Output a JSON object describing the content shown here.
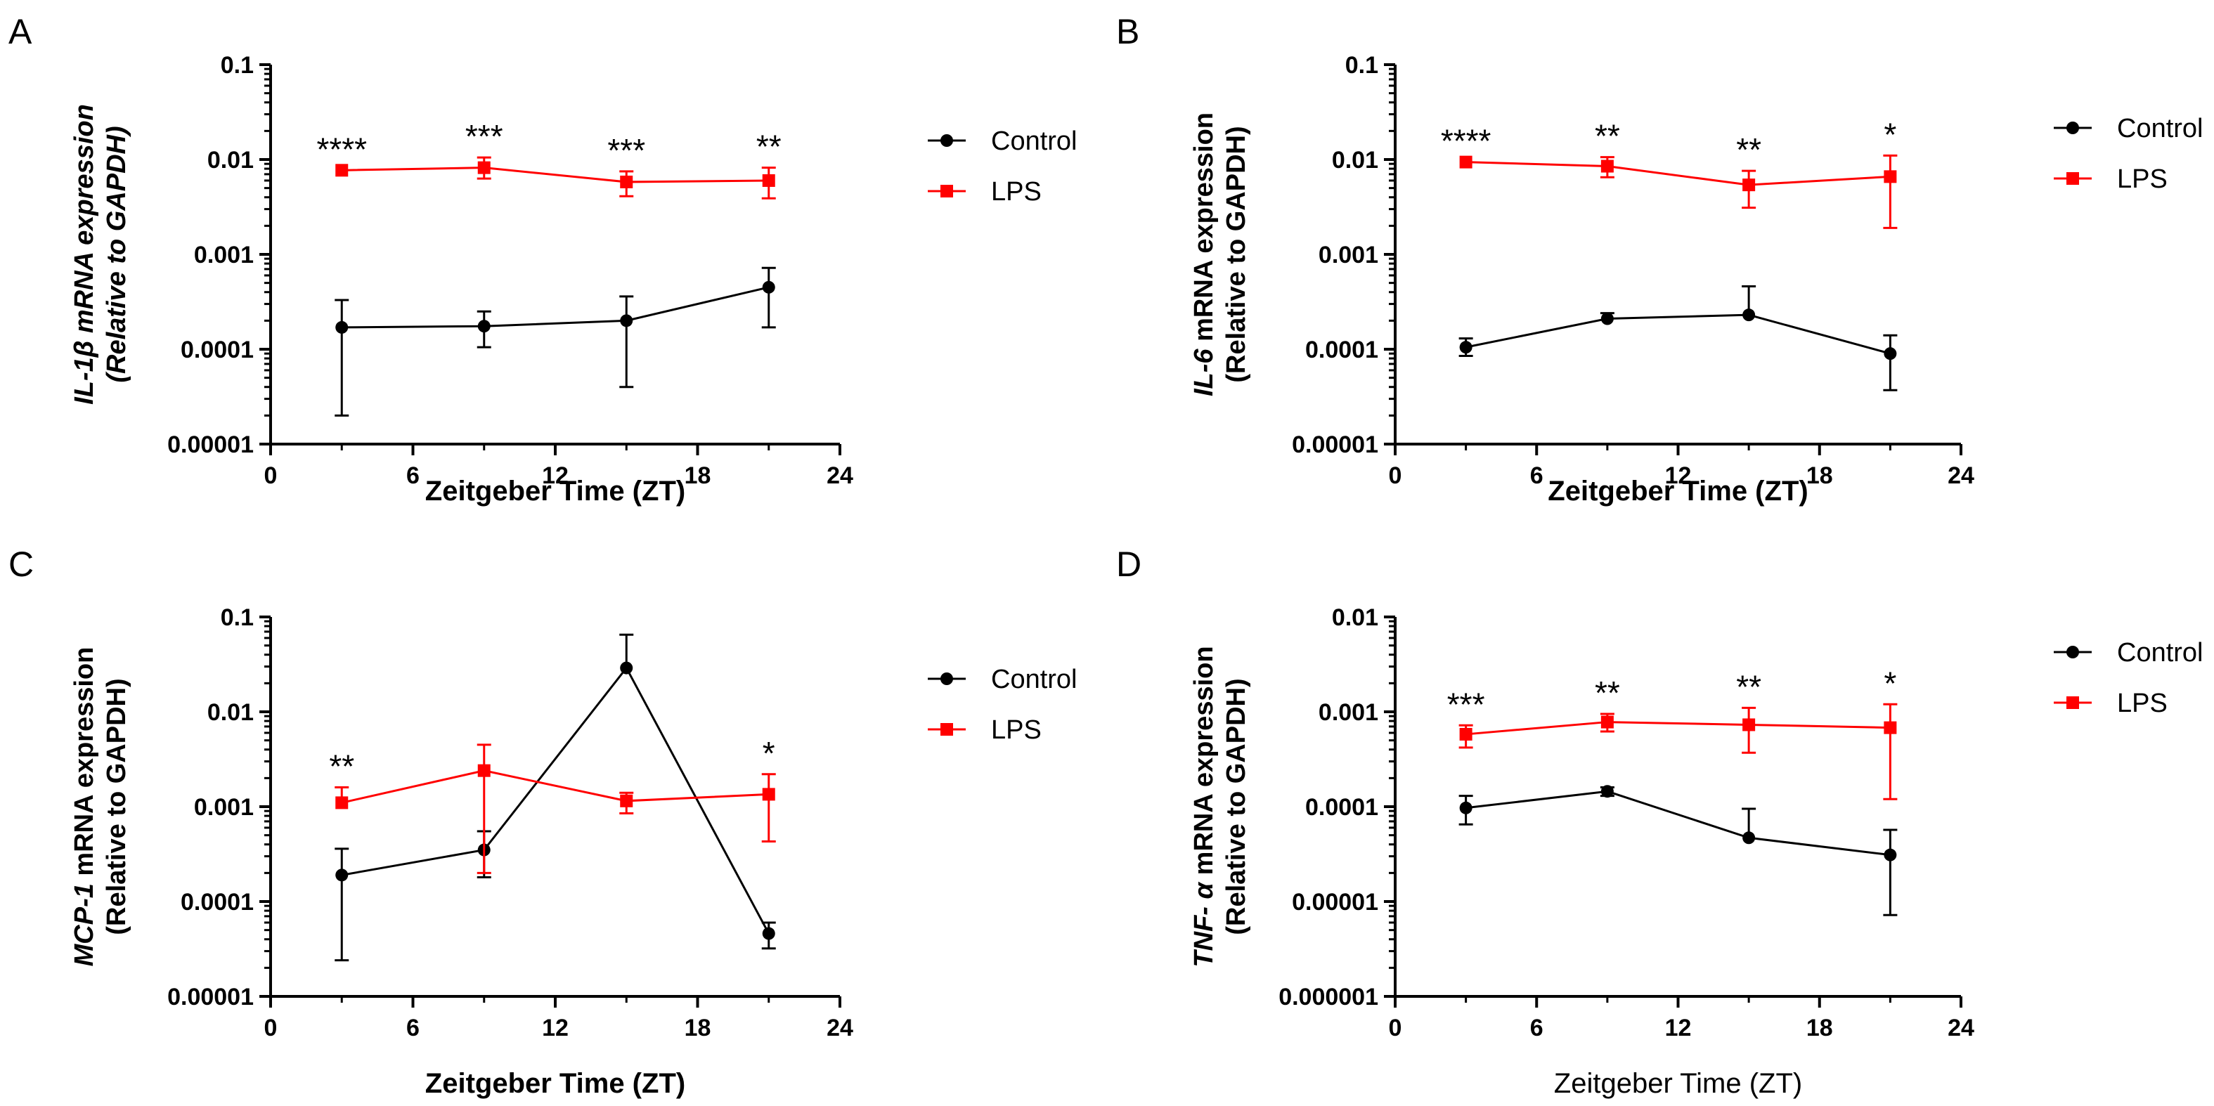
{
  "figure": {
    "colors": {
      "control": "#000000",
      "lps": "#ff0000"
    }
  },
  "chart_data": [
    {
      "panel": "A",
      "type": "line",
      "title": "",
      "ylabel_gene": "IL-1β",
      "ylabel_gene_suffix": " mRNA expression",
      "ylabel_line2": "(Relative to GAPDH)",
      "ylabel_all_italic": true,
      "xlabel": "Zeitgeber Time (ZT)",
      "xlabel_bold": true,
      "yscale": "log",
      "ylim": [
        1e-05,
        0.1
      ],
      "ytick_values": [
        1e-05,
        0.0001,
        0.001,
        0.01,
        0.1
      ],
      "yticks": [
        "0.00001",
        "0.0001",
        "0.001",
        "0.01",
        "0.1"
      ],
      "xlim": [
        0,
        24
      ],
      "xticks": [
        0,
        6,
        12,
        18,
        24
      ],
      "legend": {
        "entries": [
          "Control",
          "LPS"
        ],
        "placement": "right-top"
      },
      "series": [
        {
          "name": "Control",
          "color": "#000000",
          "marker": "circle",
          "x": [
            3,
            9,
            15,
            21
          ],
          "values": [
            0.00017,
            0.000175,
            0.0002,
            0.00045
          ],
          "err_high": [
            0.00033,
            0.00025,
            0.00036,
            0.00072
          ],
          "err_low": [
            2e-05,
            0.000105,
            4e-05,
            0.00017
          ]
        },
        {
          "name": "LPS",
          "color": "#ff0000",
          "marker": "square",
          "x": [
            3,
            9,
            15,
            21
          ],
          "values": [
            0.0077,
            0.0082,
            0.0058,
            0.006
          ],
          "err_high": [
            0.0077,
            0.0105,
            0.0075,
            0.0082
          ],
          "err_low": [
            0.0077,
            0.0063,
            0.0041,
            0.0039
          ]
        }
      ],
      "annotations": [
        {
          "x": 3,
          "text": "****",
          "anchor_value": 0.0077
        },
        {
          "x": 9,
          "text": "***",
          "anchor_value": 0.0105
        },
        {
          "x": 15,
          "text": "***",
          "anchor_value": 0.0075
        },
        {
          "x": 21,
          "text": "**",
          "anchor_value": 0.0082
        }
      ]
    },
    {
      "panel": "B",
      "type": "line",
      "title": "",
      "ylabel_gene": "IL-6",
      "ylabel_gene_suffix": " mRNA expression",
      "ylabel_line2": "(Relative to GAPDH)",
      "ylabel_all_italic": false,
      "xlabel": "Zeitgeber Time (ZT)",
      "xlabel_bold": true,
      "yscale": "log",
      "ylim": [
        1e-05,
        0.1
      ],
      "ytick_values": [
        1e-05,
        0.0001,
        0.001,
        0.01,
        0.1
      ],
      "yticks": [
        "0.00001",
        "0.0001",
        "0.001",
        "0.01",
        "0.1"
      ],
      "xlim": [
        0,
        24
      ],
      "xticks": [
        0,
        6,
        12,
        18,
        24
      ],
      "legend": {
        "entries": [
          "Control",
          "LPS"
        ],
        "placement": "right-top"
      },
      "series": [
        {
          "name": "Control",
          "color": "#000000",
          "marker": "circle",
          "x": [
            3,
            9,
            15,
            21
          ],
          "values": [
            0.000105,
            0.00021,
            0.00023,
            9e-05
          ],
          "err_high": [
            0.00013,
            0.00024,
            0.00046,
            0.00014
          ],
          "err_low": [
            8.5e-05,
            0.00021,
            0.00023,
            3.7e-05
          ]
        },
        {
          "name": "LPS",
          "color": "#ff0000",
          "marker": "square",
          "x": [
            3,
            9,
            15,
            21
          ],
          "values": [
            0.0094,
            0.0085,
            0.0054,
            0.0066
          ],
          "err_high": [
            0.0094,
            0.0106,
            0.0076,
            0.011
          ],
          "err_low": [
            0.0094,
            0.0065,
            0.0031,
            0.0019
          ]
        }
      ],
      "annotations": [
        {
          "x": 3,
          "text": "****",
          "anchor_value": 0.0094
        },
        {
          "x": 9,
          "text": "**",
          "anchor_value": 0.0106
        },
        {
          "x": 15,
          "text": "**",
          "anchor_value": 0.0076
        },
        {
          "x": 21,
          "text": "*",
          "anchor_value": 0.011
        }
      ]
    },
    {
      "panel": "C",
      "type": "line",
      "title": "",
      "ylabel_gene": "MCP-1",
      "ylabel_gene_suffix": " mRNA expression",
      "ylabel_line2": "(Relative to GAPDH)",
      "ylabel_all_italic": false,
      "xlabel": "Zeitgeber Time (ZT)",
      "xlabel_bold": true,
      "yscale": "log",
      "ylim": [
        1e-05,
        0.1
      ],
      "ytick_values": [
        1e-05,
        0.0001,
        0.001,
        0.01,
        0.1
      ],
      "yticks": [
        "0.00001",
        "0.0001",
        "0.001",
        "0.01",
        "0.1"
      ],
      "xlim": [
        0,
        24
      ],
      "xticks": [
        0,
        6,
        12,
        18,
        24
      ],
      "legend": {
        "entries": [
          "Control",
          "LPS"
        ],
        "placement": "right-middle"
      },
      "series": [
        {
          "name": "Control",
          "color": "#000000",
          "marker": "circle",
          "x": [
            3,
            9,
            15,
            21
          ],
          "values": [
            0.00019,
            0.00035,
            0.029,
            4.6e-05
          ],
          "err_high": [
            0.00036,
            0.00055,
            0.065,
            6e-05
          ],
          "err_low": [
            2.4e-05,
            0.00018,
            0.029,
            3.2e-05
          ]
        },
        {
          "name": "LPS",
          "color": "#ff0000",
          "marker": "square",
          "x": [
            3,
            9,
            15,
            21
          ],
          "values": [
            0.0011,
            0.0024,
            0.00115,
            0.00135
          ],
          "err_high": [
            0.0016,
            0.0045,
            0.0014,
            0.0022
          ],
          "err_low": [
            0.0011,
            0.0002,
            0.00085,
            0.00043
          ]
        }
      ],
      "annotations": [
        {
          "x": 3,
          "text": "**",
          "anchor_value": 0.0016
        },
        {
          "x": 21,
          "text": "*",
          "anchor_value": 0.0022
        }
      ]
    },
    {
      "panel": "D",
      "type": "line",
      "title": "",
      "ylabel_gene": "TNF- α",
      "ylabel_gene_suffix": " mRNA expression",
      "ylabel_line2": "(Relative to GAPDH)",
      "ylabel_all_italic": false,
      "xlabel": "Zeitgeber Time (ZT)",
      "xlabel_bold": false,
      "yscale": "log",
      "ylim": [
        1e-06,
        0.01
      ],
      "ytick_values": [
        1e-06,
        1e-05,
        0.0001,
        0.001,
        0.01
      ],
      "yticks": [
        "0.000001",
        "0.00001",
        "0.0001",
        "0.001",
        "0.01"
      ],
      "xlim": [
        0,
        24
      ],
      "xticks": [
        0,
        6,
        12,
        18,
        24
      ],
      "legend": {
        "entries": [
          "Control",
          "LPS"
        ],
        "placement": "right-top"
      },
      "series": [
        {
          "name": "Control",
          "color": "#000000",
          "marker": "circle",
          "x": [
            3,
            9,
            15,
            21
          ],
          "values": [
            9.7e-05,
            0.000145,
            4.7e-05,
            3.1e-05
          ],
          "err_high": [
            0.00013,
            0.00016,
            9.5e-05,
            5.7e-05
          ],
          "err_low": [
            6.5e-05,
            0.00013,
            4.7e-05,
            7.2e-06
          ]
        },
        {
          "name": "LPS",
          "color": "#ff0000",
          "marker": "square",
          "x": [
            3,
            9,
            15,
            21
          ],
          "values": [
            0.00058,
            0.00078,
            0.00073,
            0.00068
          ],
          "err_high": [
            0.00072,
            0.00095,
            0.0011,
            0.0012
          ],
          "err_low": [
            0.00042,
            0.00062,
            0.00037,
            0.00012
          ]
        }
      ],
      "annotations": [
        {
          "x": 3,
          "text": "***",
          "anchor_value": 0.00072
        },
        {
          "x": 9,
          "text": "**",
          "anchor_value": 0.00095
        },
        {
          "x": 15,
          "text": "**",
          "anchor_value": 0.0011
        },
        {
          "x": 21,
          "text": "*",
          "anchor_value": 0.0012
        }
      ]
    }
  ]
}
